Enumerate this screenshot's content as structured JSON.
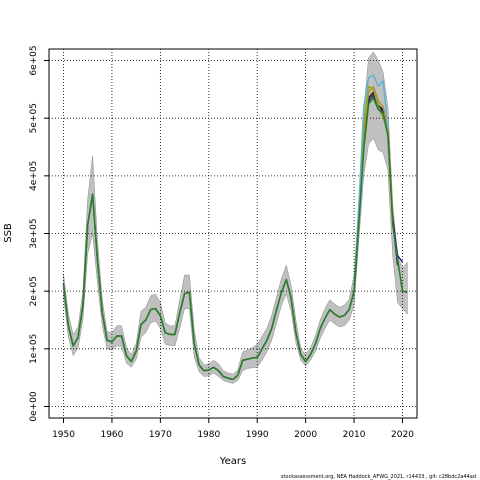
{
  "chart_data": {
    "type": "line",
    "title": "",
    "xlabel": "Years",
    "ylabel": "SSB",
    "xlim": [
      1947,
      2023
    ],
    "ylim": [
      -20000,
      620000
    ],
    "x_ticks": [
      1950,
      1960,
      1970,
      1980,
      1990,
      2000,
      2010,
      2020
    ],
    "x_tick_labels": [
      "1950",
      "1960",
      "1970",
      "1980",
      "1990",
      "2000",
      "2010",
      "2020"
    ],
    "y_ticks": [
      0,
      100000,
      200000,
      300000,
      400000,
      500000,
      600000
    ],
    "y_tick_labels": [
      "0e+00",
      "1e+05",
      "2e+05",
      "3e+05",
      "4e+05",
      "5e+05",
      "6e+05"
    ],
    "grid": true,
    "grid_style": "dotted",
    "footer": "stockassessment.org, NEA Haddock_AFWG_2021, r14433 , git: c28bdc2a44ad",
    "colors": {
      "band": "#c0c0c0",
      "band_edge": "#8a8a8a",
      "main_line": "#2b7d2b",
      "retro_colors": [
        "#1c1c7a",
        "#1a1a1a",
        "#b8902a",
        "#8aa832",
        "#5ab4cf"
      ]
    },
    "confidence_band": {
      "x": [
        1950,
        1951,
        1952,
        1953,
        1954,
        1955,
        1956,
        1957,
        1958,
        1959,
        1960,
        1961,
        1962,
        1963,
        1964,
        1965,
        1966,
        1967,
        1968,
        1969,
        1970,
        1971,
        1972,
        1973,
        1974,
        1975,
        1976,
        1977,
        1978,
        1979,
        1980,
        1981,
        1982,
        1983,
        1984,
        1985,
        1986,
        1987,
        1988,
        1989,
        1990,
        1991,
        1992,
        1993,
        1994,
        1995,
        1996,
        1997,
        1998,
        1999,
        2000,
        2001,
        2002,
        2003,
        2004,
        2005,
        2006,
        2007,
        2008,
        2009,
        2010,
        2011,
        2012,
        2013,
        2014,
        2015,
        2016,
        2017,
        2018,
        2019,
        2020,
        2021
      ],
      "lower": [
        190000,
        120000,
        88000,
        102000,
        150000,
        265000,
        300000,
        215000,
        140000,
        100000,
        98000,
        105000,
        104000,
        75000,
        68000,
        82000,
        120000,
        128000,
        145000,
        148000,
        135000,
        108000,
        106000,
        105000,
        135000,
        170000,
        170000,
        85000,
        60000,
        52000,
        53000,
        58000,
        52000,
        45000,
        42000,
        40000,
        45000,
        62000,
        66000,
        67000,
        68000,
        80000,
        95000,
        115000,
        145000,
        175000,
        195000,
        165000,
        110000,
        80000,
        70000,
        80000,
        95000,
        118000,
        135000,
        150000,
        143000,
        138000,
        140000,
        150000,
        175000,
        290000,
        400000,
        455000,
        465000,
        445000,
        440000,
        410000,
        260000,
        180000,
        170000,
        160000
      ],
      "upper": [
        230000,
        160000,
        125000,
        138000,
        200000,
        360000,
        435000,
        290000,
        185000,
        130000,
        128000,
        140000,
        140000,
        102000,
        90000,
        110000,
        165000,
        172000,
        192000,
        195000,
        180000,
        145000,
        140000,
        140000,
        185000,
        228000,
        228000,
        132000,
        85000,
        72000,
        74000,
        80000,
        74000,
        62000,
        58000,
        56000,
        64000,
        95000,
        98000,
        102000,
        108000,
        122000,
        136000,
        158000,
        190000,
        222000,
        245000,
        210000,
        150000,
        100000,
        90000,
        102000,
        122000,
        150000,
        170000,
        185000,
        178000,
        172000,
        176000,
        186000,
        228000,
        360000,
        510000,
        605000,
        615000,
        600000,
        580000,
        520000,
        350000,
        260000,
        240000,
        250000
      ]
    },
    "series": [
      {
        "x": [
          1950,
          1951,
          1952,
          1953,
          1954,
          1955,
          1956,
          1957,
          1958,
          1959,
          1960,
          1961,
          1962,
          1963,
          1964,
          1965,
          1966,
          1967,
          1968,
          1969,
          1970,
          1971,
          1972,
          1973,
          1974,
          1975,
          1976,
          1977,
          1978,
          1979,
          1980,
          1981,
          1982,
          1983,
          1984,
          1985,
          1986,
          1987,
          1988,
          1989,
          1990,
          1991,
          1992,
          1993,
          1994,
          1995,
          1996,
          1997,
          1998,
          1999,
          2000,
          2001,
          2002,
          2003,
          2004,
          2005,
          2006,
          2007,
          2008,
          2009,
          2010,
          2011,
          2012,
          2013,
          2014,
          2015,
          2016,
          2017,
          2018,
          2019,
          2020,
          2021
        ],
        "values": [
          212000,
          140000,
          105000,
          120000,
          175000,
          315000,
          368000,
          255000,
          162000,
          115000,
          112000,
          122000,
          122000,
          88000,
          78000,
          96000,
          142000,
          150000,
          168000,
          170000,
          157000,
          128000,
          125000,
          125000,
          162000,
          196000,
          198000,
          108000,
          72000,
          62000,
          63000,
          68000,
          62000,
          52000,
          49000,
          47000,
          54000,
          80000,
          82000,
          84000,
          85000,
          100000,
          115000,
          135000,
          168000,
          198000,
          220000,
          188000,
          128000,
          90000,
          78000,
          90000,
          108000,
          135000,
          153000,
          168000,
          160000,
          155000,
          158000,
          168000,
          200000,
          320000,
          445000,
          525000,
          535000,
          515000,
          508000,
          470000,
          315000,
          255000,
          200000,
          198000
        ]
      },
      {
        "x": [
          1950,
          1951,
          1952,
          1953,
          1954,
          1955,
          1956,
          1957,
          1958,
          1959,
          1960,
          1961,
          1962,
          1963,
          1964,
          1965,
          1966,
          1967,
          1968,
          1969,
          1970,
          1971,
          1972,
          1973,
          1974,
          1975,
          1976,
          1977,
          1978,
          1979,
          1980,
          1981,
          1982,
          1983,
          1984,
          1985,
          1986,
          1987,
          1988,
          1989,
          1990,
          1991,
          1992,
          1993,
          1994,
          1995,
          1996,
          1997,
          1998,
          1999,
          2000,
          2001,
          2002,
          2003,
          2004,
          2005,
          2006,
          2007,
          2008,
          2009,
          2010,
          2011,
          2012,
          2013,
          2014,
          2015,
          2016,
          2017,
          2018,
          2019,
          2020
        ],
        "values": [
          212000,
          140000,
          105000,
          120000,
          175000,
          315000,
          368000,
          255000,
          162000,
          115000,
          112000,
          122000,
          122000,
          88000,
          78000,
          96000,
          142000,
          150000,
          168000,
          170000,
          157000,
          128000,
          125000,
          125000,
          162000,
          196000,
          198000,
          108000,
          72000,
          62000,
          63000,
          68000,
          62000,
          52000,
          49000,
          47000,
          54000,
          80000,
          82000,
          84000,
          85000,
          100000,
          115000,
          135000,
          168000,
          198000,
          220000,
          188000,
          128000,
          90000,
          78000,
          90000,
          108000,
          135000,
          153000,
          168000,
          160000,
          155000,
          158000,
          168000,
          200000,
          322000,
          448000,
          530000,
          540000,
          518000,
          512000,
          475000,
          325000,
          262000,
          250000
        ]
      },
      {
        "x": [
          1950,
          1951,
          1952,
          1953,
          1954,
          1955,
          1956,
          1957,
          1958,
          1959,
          1960,
          1961,
          1962,
          1963,
          1964,
          1965,
          1966,
          1967,
          1968,
          1969,
          1970,
          1971,
          1972,
          1973,
          1974,
          1975,
          1976,
          1977,
          1978,
          1979,
          1980,
          1981,
          1982,
          1983,
          1984,
          1985,
          1986,
          1987,
          1988,
          1989,
          1990,
          1991,
          1992,
          1993,
          1994,
          1995,
          1996,
          1997,
          1998,
          1999,
          2000,
          2001,
          2002,
          2003,
          2004,
          2005,
          2006,
          2007,
          2008,
          2009,
          2010,
          2011,
          2012,
          2013,
          2014,
          2015,
          2016,
          2017,
          2018,
          2019
        ],
        "values": [
          212000,
          140000,
          105000,
          120000,
          175000,
          315000,
          368000,
          255000,
          162000,
          115000,
          112000,
          122000,
          122000,
          88000,
          78000,
          96000,
          142000,
          150000,
          168000,
          170000,
          157000,
          128000,
          125000,
          125000,
          162000,
          196000,
          198000,
          108000,
          72000,
          62000,
          63000,
          68000,
          62000,
          52000,
          49000,
          47000,
          54000,
          80000,
          82000,
          84000,
          85000,
          100000,
          115000,
          135000,
          168000,
          198000,
          220000,
          188000,
          128000,
          90000,
          78000,
          90000,
          108000,
          135000,
          153000,
          168000,
          160000,
          155000,
          158000,
          168000,
          200000,
          325000,
          452000,
          535000,
          545000,
          522000,
          515000,
          478000,
          320000,
          245000
        ]
      },
      {
        "x": [
          1950,
          1951,
          1952,
          1953,
          1954,
          1955,
          1956,
          1957,
          1958,
          1959,
          1960,
          1961,
          1962,
          1963,
          1964,
          1965,
          1966,
          1967,
          1968,
          1969,
          1970,
          1971,
          1972,
          1973,
          1974,
          1975,
          1976,
          1977,
          1978,
          1979,
          1980,
          1981,
          1982,
          1983,
          1984,
          1985,
          1986,
          1987,
          1988,
          1989,
          1990,
          1991,
          1992,
          1993,
          1994,
          1995,
          1996,
          1997,
          1998,
          1999,
          2000,
          2001,
          2002,
          2003,
          2004,
          2005,
          2006,
          2007,
          2008,
          2009,
          2010,
          2011,
          2012,
          2013,
          2014,
          2015,
          2016,
          2017,
          2018
        ],
        "values": [
          212000,
          140000,
          105000,
          120000,
          175000,
          315000,
          368000,
          255000,
          162000,
          115000,
          112000,
          122000,
          122000,
          88000,
          78000,
          96000,
          142000,
          150000,
          168000,
          170000,
          157000,
          128000,
          125000,
          125000,
          162000,
          196000,
          198000,
          108000,
          72000,
          62000,
          63000,
          68000,
          62000,
          52000,
          49000,
          47000,
          54000,
          80000,
          82000,
          84000,
          85000,
          100000,
          115000,
          135000,
          168000,
          198000,
          220000,
          188000,
          128000,
          90000,
          78000,
          90000,
          108000,
          135000,
          153000,
          168000,
          160000,
          155000,
          158000,
          168000,
          200000,
          330000,
          470000,
          545000,
          555000,
          530000,
          520000,
          480000,
          330000
        ]
      },
      {
        "x": [
          1950,
          1951,
          1952,
          1953,
          1954,
          1955,
          1956,
          1957,
          1958,
          1959,
          1960,
          1961,
          1962,
          1963,
          1964,
          1965,
          1966,
          1967,
          1968,
          1969,
          1970,
          1971,
          1972,
          1973,
          1974,
          1975,
          1976,
          1977,
          1978,
          1979,
          1980,
          1981,
          1982,
          1983,
          1984,
          1985,
          1986,
          1987,
          1988,
          1989,
          1990,
          1991,
          1992,
          1993,
          1994,
          1995,
          1996,
          1997,
          1998,
          1999,
          2000,
          2001,
          2002,
          2003,
          2004,
          2005,
          2006,
          2007,
          2008,
          2009,
          2010,
          2011,
          2012,
          2013,
          2014,
          2015,
          2016,
          2017
        ],
        "values": [
          212000,
          140000,
          105000,
          120000,
          175000,
          315000,
          368000,
          255000,
          162000,
          115000,
          112000,
          122000,
          122000,
          88000,
          78000,
          96000,
          142000,
          150000,
          168000,
          170000,
          157000,
          128000,
          125000,
          125000,
          162000,
          196000,
          198000,
          108000,
          72000,
          62000,
          63000,
          68000,
          62000,
          52000,
          49000,
          47000,
          54000,
          80000,
          82000,
          84000,
          85000,
          100000,
          115000,
          135000,
          168000,
          198000,
          220000,
          188000,
          128000,
          90000,
          78000,
          90000,
          108000,
          135000,
          153000,
          168000,
          160000,
          155000,
          158000,
          168000,
          200000,
          335000,
          490000,
          555000,
          550000,
          520000,
          500000,
          480000
        ]
      },
      {
        "x": [
          1950,
          1951,
          1952,
          1953,
          1954,
          1955,
          1956,
          1957,
          1958,
          1959,
          1960,
          1961,
          1962,
          1963,
          1964,
          1965,
          1966,
          1967,
          1968,
          1969,
          1970,
          1971,
          1972,
          1973,
          1974,
          1975,
          1976,
          1977,
          1978,
          1979,
          1980,
          1981,
          1982,
          1983,
          1984,
          1985,
          1986,
          1987,
          1988,
          1989,
          1990,
          1991,
          1992,
          1993,
          1994,
          1995,
          1996,
          1997,
          1998,
          1999,
          2000,
          2001,
          2002,
          2003,
          2004,
          2005,
          2006,
          2007,
          2008,
          2009,
          2010,
          2011,
          2012,
          2013,
          2014,
          2015,
          2016,
          2017
        ],
        "values": [
          212000,
          140000,
          105000,
          120000,
          175000,
          315000,
          368000,
          255000,
          162000,
          115000,
          112000,
          122000,
          122000,
          88000,
          78000,
          96000,
          142000,
          150000,
          168000,
          170000,
          157000,
          128000,
          125000,
          125000,
          162000,
          196000,
          198000,
          108000,
          72000,
          62000,
          63000,
          68000,
          62000,
          52000,
          49000,
          47000,
          54000,
          80000,
          82000,
          84000,
          85000,
          100000,
          115000,
          135000,
          168000,
          198000,
          220000,
          188000,
          128000,
          90000,
          78000,
          90000,
          108000,
          135000,
          153000,
          168000,
          160000,
          155000,
          158000,
          168000,
          200000,
          350000,
          520000,
          570000,
          575000,
          555000,
          565000,
          480000
        ]
      }
    ]
  }
}
